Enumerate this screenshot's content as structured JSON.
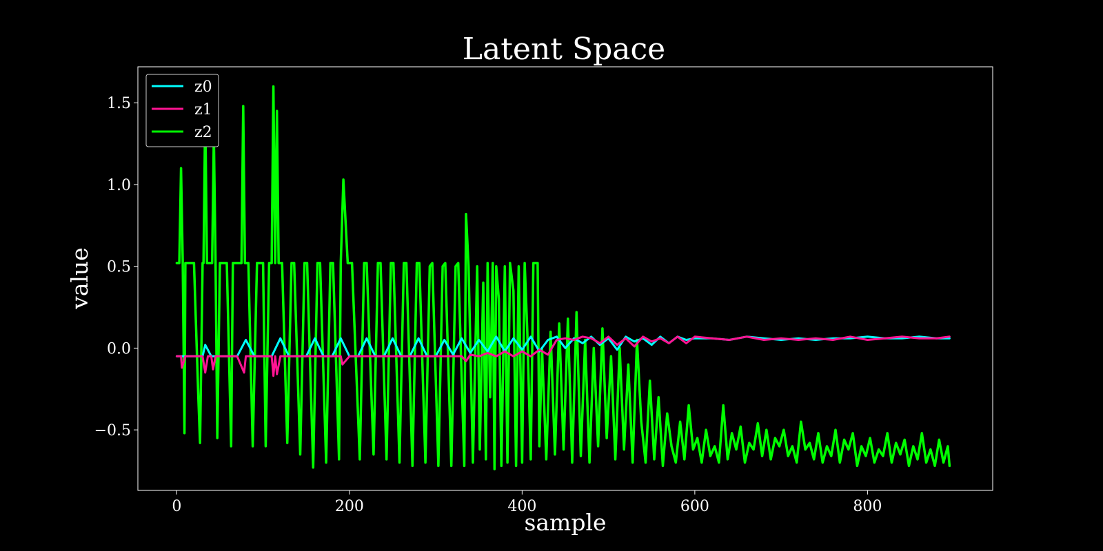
{
  "chart_data": {
    "type": "line",
    "title": "Latent Space",
    "xlabel": "sample",
    "ylabel": "value",
    "xlim": [
      -45,
      945
    ],
    "ylim": [
      -0.87,
      1.72
    ],
    "xticks": [
      0,
      200,
      400,
      600,
      800
    ],
    "xtick_labels": [
      "0",
      "200",
      "400",
      "600",
      "800"
    ],
    "yticks": [
      -0.5,
      0.0,
      0.5,
      1.0,
      1.5
    ],
    "ytick_labels": [
      "−0.5",
      "0.0",
      "0.5",
      "1.0",
      "1.5"
    ],
    "legend_position": "top-left",
    "grid": false,
    "background": "#000000",
    "foreground": "#ffffff",
    "series": [
      {
        "name": "z0",
        "color": "#00ffff",
        "x": [
          0,
          10,
          20,
          30,
          33,
          40,
          50,
          60,
          70,
          80,
          90,
          100,
          110,
          120,
          130,
          140,
          150,
          160,
          170,
          180,
          190,
          200,
          210,
          220,
          230,
          240,
          250,
          260,
          270,
          280,
          290,
          300,
          310,
          320,
          330,
          340,
          350,
          360,
          370,
          380,
          390,
          400,
          410,
          420,
          430,
          440,
          450,
          460,
          470,
          480,
          490,
          500,
          510,
          520,
          530,
          540,
          550,
          560,
          570,
          580,
          590,
          600,
          620,
          640,
          660,
          680,
          700,
          720,
          740,
          760,
          780,
          800,
          820,
          840,
          860,
          880,
          895
        ],
        "values": [
          -0.05,
          -0.05,
          -0.05,
          -0.05,
          0.02,
          -0.05,
          -0.05,
          -0.05,
          -0.05,
          0.05,
          -0.05,
          -0.05,
          -0.05,
          0.06,
          -0.05,
          -0.05,
          -0.05,
          0.06,
          -0.05,
          -0.05,
          0.06,
          -0.05,
          -0.05,
          0.06,
          -0.05,
          -0.05,
          0.06,
          -0.05,
          -0.05,
          0.06,
          -0.05,
          -0.05,
          0.05,
          -0.04,
          0.06,
          -0.03,
          0.05,
          -0.02,
          0.07,
          -0.02,
          0.06,
          -0.01,
          0.07,
          -0.02,
          0.05,
          0.07,
          0.0,
          0.06,
          0.03,
          0.07,
          0.02,
          0.06,
          -0.01,
          0.07,
          0.04,
          0.06,
          0.02,
          0.07,
          0.03,
          0.07,
          0.05,
          0.06,
          0.06,
          0.05,
          0.07,
          0.06,
          0.05,
          0.06,
          0.05,
          0.06,
          0.06,
          0.07,
          0.06,
          0.06,
          0.07,
          0.06,
          0.06
        ]
      },
      {
        "name": "z1",
        "color": "#ff1493",
        "x": [
          0,
          5,
          6,
          10,
          30,
          33,
          36,
          40,
          42,
          45,
          50,
          70,
          78,
          80,
          100,
          110,
          112,
          114,
          116,
          120,
          130,
          140,
          150,
          160,
          170,
          180,
          190,
          192,
          200,
          210,
          220,
          230,
          240,
          250,
          260,
          270,
          280,
          290,
          300,
          310,
          320,
          330,
          335,
          340,
          350,
          360,
          370,
          380,
          390,
          400,
          410,
          420,
          430,
          440,
          450,
          460,
          470,
          480,
          490,
          500,
          510,
          520,
          530,
          540,
          550,
          560,
          570,
          580,
          590,
          600,
          620,
          640,
          660,
          680,
          700,
          720,
          740,
          760,
          780,
          800,
          820,
          840,
          860,
          880,
          895
        ],
        "values": [
          -0.05,
          -0.05,
          -0.12,
          -0.05,
          -0.05,
          -0.15,
          -0.05,
          -0.05,
          -0.13,
          -0.05,
          -0.05,
          -0.05,
          -0.15,
          -0.05,
          -0.05,
          -0.05,
          -0.17,
          -0.05,
          -0.16,
          -0.05,
          -0.05,
          -0.05,
          -0.05,
          -0.05,
          -0.05,
          -0.05,
          -0.05,
          -0.1,
          -0.05,
          -0.05,
          -0.05,
          -0.05,
          -0.05,
          -0.05,
          -0.05,
          -0.05,
          -0.05,
          -0.05,
          -0.05,
          -0.05,
          -0.05,
          -0.05,
          -0.08,
          -0.04,
          -0.05,
          -0.03,
          -0.05,
          -0.02,
          -0.05,
          -0.02,
          -0.05,
          -0.01,
          -0.04,
          0.05,
          0.06,
          0.05,
          0.07,
          0.06,
          0.03,
          0.07,
          0.02,
          0.06,
          0.01,
          0.07,
          0.04,
          0.06,
          0.03,
          0.07,
          0.03,
          0.07,
          0.06,
          0.05,
          0.07,
          0.05,
          0.06,
          0.05,
          0.06,
          0.05,
          0.07,
          0.05,
          0.06,
          0.07,
          0.06,
          0.06,
          0.07
        ]
      },
      {
        "name": "z2",
        "color": "#00ff00",
        "x": [
          0,
          3,
          5,
          7,
          9,
          10,
          12,
          20,
          25,
          27,
          30,
          31,
          33,
          35,
          38,
          41,
          43,
          45,
          47,
          50,
          58,
          63,
          65,
          70,
          75,
          77,
          79,
          80,
          83,
          88,
          93,
          100,
          103,
          107,
          110,
          112,
          114,
          116,
          118,
          120,
          122,
          128,
          133,
          136,
          143,
          148,
          151,
          158,
          163,
          166,
          173,
          178,
          181,
          188,
          190,
          193,
          198,
          200,
          203,
          212,
          217,
          220,
          228,
          233,
          236,
          243,
          248,
          251,
          258,
          263,
          266,
          273,
          278,
          281,
          288,
          293,
          296,
          303,
          308,
          311,
          318,
          323,
          326,
          333,
          335,
          338,
          343,
          348,
          351,
          355,
          358,
          360,
          363,
          366,
          368,
          370,
          373,
          376,
          380,
          383,
          386,
          390,
          393,
          396,
          400,
          403,
          406,
          410,
          413,
          416,
          418,
          420,
          423,
          428,
          433,
          438,
          443,
          448,
          453,
          458,
          463,
          468,
          473,
          478,
          483,
          488,
          493,
          498,
          503,
          508,
          513,
          518,
          523,
          528,
          533,
          538,
          543,
          548,
          553,
          558,
          563,
          568,
          573,
          578,
          583,
          588,
          593,
          598,
          603,
          608,
          613,
          618,
          623,
          628,
          633,
          638,
          643,
          648,
          653,
          658,
          663,
          668,
          673,
          678,
          683,
          688,
          693,
          698,
          703,
          708,
          713,
          718,
          723,
          728,
          733,
          738,
          743,
          748,
          753,
          758,
          763,
          768,
          773,
          778,
          783,
          788,
          793,
          798,
          803,
          808,
          813,
          818,
          823,
          828,
          833,
          838,
          843,
          848,
          853,
          858,
          863,
          868,
          873,
          878,
          883,
          888,
          893,
          895
        ],
        "values": [
          0.52,
          0.52,
          1.1,
          0.52,
          -0.52,
          0.52,
          0.52,
          0.52,
          -0.3,
          -0.58,
          0.52,
          0.52,
          1.45,
          0.52,
          0.52,
          0.52,
          1.3,
          0.52,
          -0.55,
          0.52,
          0.52,
          -0.6,
          0.52,
          0.52,
          0.52,
          1.48,
          0.52,
          0.52,
          0.52,
          -0.6,
          0.52,
          0.52,
          -0.6,
          0.52,
          0.52,
          1.6,
          0.52,
          1.45,
          0.52,
          0.52,
          0.52,
          -0.58,
          0.52,
          0.52,
          -0.65,
          0.52,
          0.52,
          -0.73,
          0.52,
          0.52,
          -0.7,
          0.52,
          0.52,
          -0.68,
          0.52,
          1.03,
          0.52,
          0.52,
          0.52,
          -0.68,
          0.52,
          0.52,
          -0.65,
          0.52,
          0.52,
          -0.68,
          0.52,
          0.52,
          -0.7,
          0.52,
          0.52,
          -0.72,
          0.52,
          0.52,
          -0.7,
          0.5,
          0.52,
          -0.72,
          0.5,
          0.52,
          -0.72,
          0.5,
          0.52,
          -0.72,
          0.82,
          0.5,
          -0.7,
          0.5,
          -0.62,
          0.4,
          -0.68,
          0.52,
          -0.3,
          0.52,
          -0.74,
          0.5,
          0.3,
          -0.72,
          0.5,
          -0.7,
          0.52,
          0.35,
          -0.72,
          0.5,
          -0.7,
          0.52,
          0.1,
          -0.68,
          0.52,
          0.52,
          0.52,
          -0.6,
          0.0,
          -0.68,
          0.1,
          -0.65,
          0.15,
          -0.62,
          0.18,
          -0.7,
          0.22,
          -0.66,
          0.05,
          -0.7,
          0.0,
          -0.6,
          0.12,
          -0.55,
          -0.05,
          -0.68,
          0.0,
          -0.62,
          -0.1,
          -0.7,
          0.05,
          -0.45,
          -0.7,
          -0.2,
          -0.68,
          -0.3,
          -0.72,
          -0.4,
          -0.6,
          -0.7,
          -0.45,
          -0.68,
          -0.35,
          -0.62,
          -0.55,
          -0.7,
          -0.5,
          -0.66,
          -0.6,
          -0.7,
          -0.35,
          -0.68,
          -0.52,
          -0.62,
          -0.48,
          -0.7,
          -0.58,
          -0.62,
          -0.46,
          -0.66,
          -0.5,
          -0.68,
          -0.55,
          -0.6,
          -0.5,
          -0.66,
          -0.6,
          -0.7,
          -0.45,
          -0.62,
          -0.58,
          -0.68,
          -0.52,
          -0.7,
          -0.6,
          -0.66,
          -0.5,
          -0.7,
          -0.56,
          -0.62,
          -0.52,
          -0.72,
          -0.6,
          -0.66,
          -0.55,
          -0.7,
          -0.62,
          -0.66,
          -0.52,
          -0.7,
          -0.58,
          -0.65,
          -0.56,
          -0.72,
          -0.6,
          -0.68,
          -0.52,
          -0.7,
          -0.62,
          -0.72,
          -0.56,
          -0.7,
          -0.6,
          -0.72
        ]
      }
    ]
  }
}
